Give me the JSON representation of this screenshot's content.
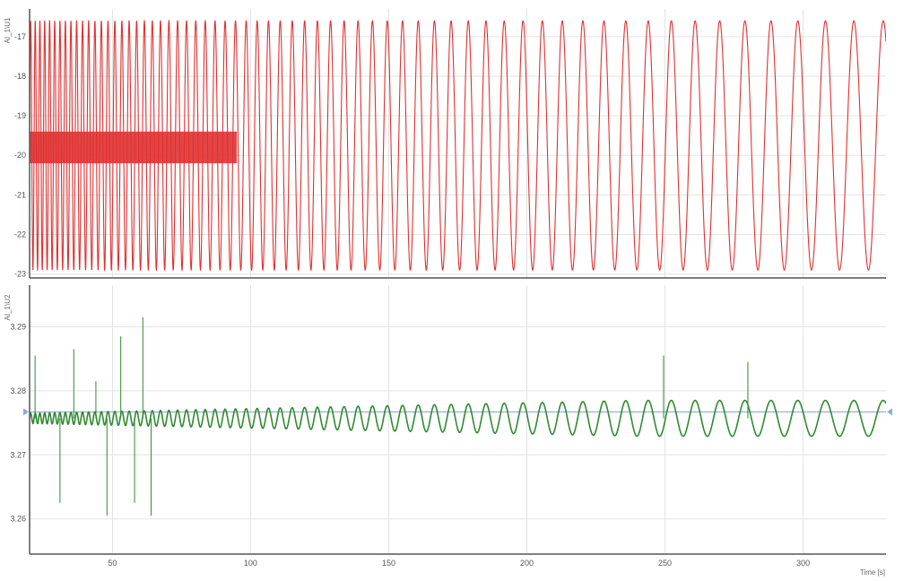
{
  "chart_data": [
    {
      "type": "line",
      "ylabel": "AI_1\\U1",
      "xlabel": "",
      "xlim": [
        20,
        330
      ],
      "ylim": [
        -23.1,
        -16.3
      ],
      "yticks": [
        -17,
        -18,
        -19,
        -20,
        -21,
        -22,
        -23
      ],
      "grid": true,
      "color": "#e03131",
      "description_values": {
        "signal": "swept-frequency sine (chirp), frequency decreasing with time",
        "center": -19.75,
        "amplitude": 3.15,
        "start_period_s": 1.6,
        "end_period_s": 10.8,
        "burst_band": [
          -19.4,
          -20.2
        ]
      },
      "series": [
        {
          "name": "",
          "values": [
            [
              20,
              -19.75
            ],
            [
              330,
              -19.75
            ]
          ]
        }
      ]
    },
    {
      "type": "line",
      "ylabel": "AI_1\\U2",
      "xlabel": "Time [s]",
      "xlim": [
        20,
        330
      ],
      "xticks": [
        50,
        100,
        150,
        200,
        250,
        300
      ],
      "ylim": [
        3.2545,
        3.2965
      ],
      "yticks": [
        3.29,
        3.28,
        3.27,
        3.26
      ],
      "grid": true,
      "color": "#2f8a2f",
      "reference_line": 3.2767,
      "reference_color": "#8faad8",
      "description_values": {
        "signal": "small-amplitude oscillation following the same chirp",
        "center": 3.2757,
        "start_amplitude": 0.0008,
        "end_amplitude": 0.0028,
        "spikes": [
          [
            22,
            3.2855
          ],
          [
            31,
            3.2625
          ],
          [
            36,
            3.2865
          ],
          [
            44,
            3.2815
          ],
          [
            48,
            3.2605
          ],
          [
            53,
            3.2885
          ],
          [
            58,
            3.2625
          ],
          [
            61,
            3.2915
          ],
          [
            64,
            3.2605
          ],
          [
            249.5,
            3.2855
          ],
          [
            280,
            3.2845
          ]
        ]
      },
      "series": [
        {
          "name": "",
          "values": [
            [
              20,
              3.2757
            ],
            [
              330,
              3.2757
            ]
          ]
        }
      ]
    }
  ]
}
